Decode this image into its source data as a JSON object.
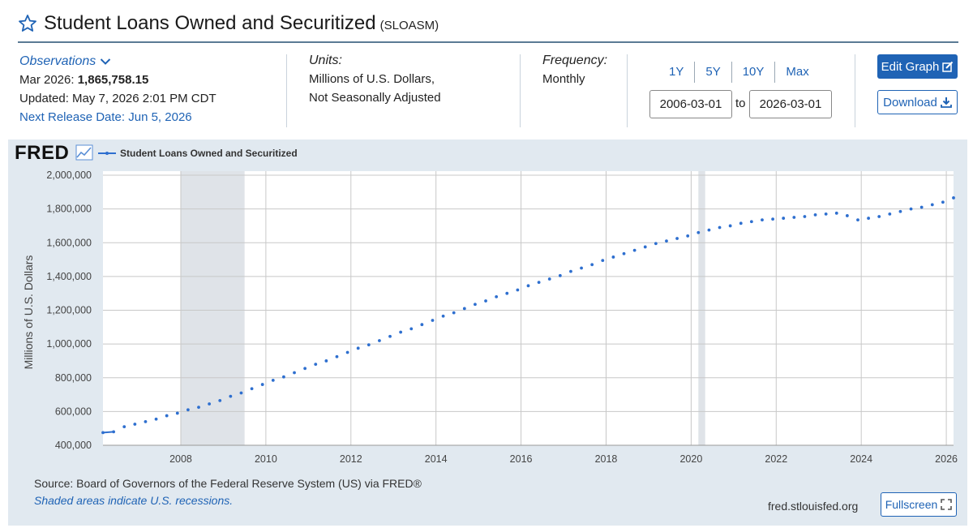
{
  "header": {
    "title": "Student Loans Owned and Securitized",
    "series_id": "(SLOASM)"
  },
  "observations": {
    "label": "Observations",
    "latest_period": "Mar 2026:",
    "latest_value": "1,865,758.15",
    "updated": "Updated: May 7, 2026 2:01 PM CDT",
    "next_release": "Next Release Date: Jun 5, 2026"
  },
  "units": {
    "label": "Units:",
    "line1": "Millions of U.S. Dollars,",
    "line2": "Not Seasonally Adjusted"
  },
  "frequency": {
    "label": "Frequency:",
    "value": "Monthly"
  },
  "range": {
    "buttons": [
      "1Y",
      "5Y",
      "10Y",
      "Max"
    ],
    "start": "2006-03-01",
    "to_label": "to",
    "end": "2026-03-01"
  },
  "actions": {
    "edit": "Edit Graph",
    "download": "Download",
    "fullscreen": "Fullscreen"
  },
  "panel": {
    "logo": "FRED",
    "source": "Source: Board of Governors of the Federal Reserve System (US) via FRED®",
    "recession_note": "Shaded areas indicate U.S. recessions.",
    "site": "fred.stlouisfed.org"
  },
  "colors": {
    "series": "#2e6fcf",
    "recession": "#dfe3e8",
    "accent": "#1f63b5"
  },
  "chart_data": {
    "type": "scatter",
    "title": "",
    "xlabel": "",
    "ylabel": "Millions of U.S. Dollars",
    "xlim": [
      2006.17,
      2026.17
    ],
    "ylim": [
      400000,
      2000000
    ],
    "x_ticks": [
      "2008",
      "2010",
      "2012",
      "2014",
      "2016",
      "2018",
      "2020",
      "2022",
      "2024",
      "2026"
    ],
    "y_ticks": [
      "2,000,000",
      "1,800,000",
      "1,600,000",
      "1,400,000",
      "1,200,000",
      "1,000,000",
      "800,000",
      "600,000",
      "400,000"
    ],
    "grid": true,
    "legend_position": "top-left",
    "recessions": [
      [
        2008.0,
        2009.5
      ],
      [
        2020.17,
        2020.33
      ]
    ],
    "series": [
      {
        "name": "Student Loans Owned and Securitized",
        "x": [
          2006.17,
          2006.42,
          2006.67,
          2006.92,
          2007.17,
          2007.42,
          2007.67,
          2007.92,
          2008.17,
          2008.42,
          2008.67,
          2008.92,
          2009.17,
          2009.42,
          2009.67,
          2009.92,
          2010.17,
          2010.42,
          2010.67,
          2010.92,
          2011.17,
          2011.42,
          2011.67,
          2011.92,
          2012.17,
          2012.42,
          2012.67,
          2012.92,
          2013.17,
          2013.42,
          2013.67,
          2013.92,
          2014.17,
          2014.42,
          2014.67,
          2014.92,
          2015.17,
          2015.42,
          2015.67,
          2015.92,
          2016.17,
          2016.42,
          2016.67,
          2016.92,
          2017.17,
          2017.42,
          2017.67,
          2017.92,
          2018.17,
          2018.42,
          2018.67,
          2018.92,
          2019.17,
          2019.42,
          2019.67,
          2019.92,
          2020.17,
          2020.42,
          2020.67,
          2020.92,
          2021.17,
          2021.42,
          2021.67,
          2021.92,
          2022.17,
          2022.42,
          2022.67,
          2022.92,
          2023.17,
          2023.42,
          2023.67,
          2023.92,
          2024.17,
          2024.42,
          2024.67,
          2024.92,
          2025.17,
          2025.42,
          2025.67,
          2025.92,
          2026.17
        ],
        "values": [
          475000,
          480000,
          510000,
          525000,
          540000,
          555000,
          575000,
          590000,
          610000,
          625000,
          645000,
          665000,
          690000,
          710000,
          735000,
          760000,
          785000,
          805000,
          830000,
          855000,
          880000,
          900000,
          925000,
          950000,
          975000,
          995000,
          1020000,
          1045000,
          1070000,
          1090000,
          1115000,
          1140000,
          1165000,
          1185000,
          1210000,
          1235000,
          1255000,
          1280000,
          1300000,
          1320000,
          1345000,
          1365000,
          1385000,
          1405000,
          1430000,
          1450000,
          1470000,
          1495000,
          1515000,
          1535000,
          1555000,
          1575000,
          1595000,
          1610000,
          1625000,
          1640000,
          1660000,
          1675000,
          1690000,
          1700000,
          1715000,
          1725000,
          1735000,
          1740000,
          1745000,
          1750000,
          1755000,
          1765000,
          1770000,
          1775000,
          1760000,
          1735000,
          1745000,
          1755000,
          1770000,
          1785000,
          1800000,
          1810000,
          1825000,
          1840000,
          1865758
        ]
      }
    ]
  }
}
